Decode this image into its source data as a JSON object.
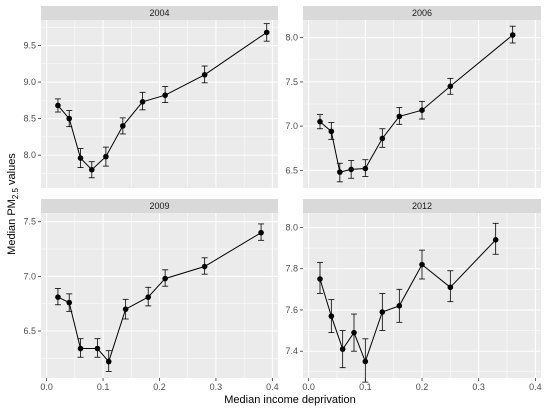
{
  "chart_data": {
    "type": "line",
    "xlabel": "Median income deprivation",
    "ylabel": {
      "pre": "Median PM",
      "sub": "2.5",
      "post": " values"
    },
    "x_ticks": [
      0.0,
      0.1,
      0.2,
      0.3,
      0.4
    ],
    "x_tick_labels": [
      "0.0",
      "0.1",
      "0.2",
      "0.3",
      "0.4"
    ],
    "xlim": [
      -0.01,
      0.41
    ],
    "grid": true,
    "error_bars": true,
    "colors": {
      "panel_bg": "#ebebeb",
      "strip_bg": "#d9d9d9",
      "grid": "#ffffff",
      "line": "#000000"
    },
    "facets": [
      {
        "label": "2004",
        "ylim": [
          7.55,
          9.85
        ],
        "y_ticks": [
          8.0,
          8.5,
          9.0,
          9.5
        ],
        "y_tick_labels": [
          "8.0",
          "8.5",
          "9.0",
          "9.5"
        ],
        "points": [
          {
            "x": 0.02,
            "y": 8.68,
            "lo": 8.59,
            "hi": 8.77
          },
          {
            "x": 0.04,
            "y": 8.5,
            "lo": 8.39,
            "hi": 8.61
          },
          {
            "x": 0.06,
            "y": 7.96,
            "lo": 7.83,
            "hi": 8.09
          },
          {
            "x": 0.08,
            "y": 7.8,
            "lo": 7.69,
            "hi": 7.91
          },
          {
            "x": 0.105,
            "y": 7.98,
            "lo": 7.85,
            "hi": 8.11
          },
          {
            "x": 0.135,
            "y": 8.4,
            "lo": 8.29,
            "hi": 8.51
          },
          {
            "x": 0.17,
            "y": 8.73,
            "lo": 8.62,
            "hi": 8.86
          },
          {
            "x": 0.21,
            "y": 8.82,
            "lo": 8.72,
            "hi": 8.94
          },
          {
            "x": 0.28,
            "y": 9.1,
            "lo": 8.99,
            "hi": 9.22
          },
          {
            "x": 0.39,
            "y": 9.68,
            "lo": 9.56,
            "hi": 9.8
          }
        ]
      },
      {
        "label": "2006",
        "ylim": [
          6.3,
          8.2
        ],
        "y_ticks": [
          6.5,
          7.0,
          7.5,
          8.0
        ],
        "y_tick_labels": [
          "6.5",
          "7.0",
          "7.5",
          "8.0"
        ],
        "points": [
          {
            "x": 0.02,
            "y": 7.05,
            "lo": 6.97,
            "hi": 7.13
          },
          {
            "x": 0.04,
            "y": 6.94,
            "lo": 6.85,
            "hi": 7.04
          },
          {
            "x": 0.055,
            "y": 6.48,
            "lo": 6.37,
            "hi": 6.58
          },
          {
            "x": 0.075,
            "y": 6.51,
            "lo": 6.41,
            "hi": 6.61
          },
          {
            "x": 0.1,
            "y": 6.52,
            "lo": 6.43,
            "hi": 6.62
          },
          {
            "x": 0.13,
            "y": 6.86,
            "lo": 6.76,
            "hi": 6.97
          },
          {
            "x": 0.16,
            "y": 7.11,
            "lo": 7.02,
            "hi": 7.21
          },
          {
            "x": 0.2,
            "y": 7.18,
            "lo": 7.08,
            "hi": 7.28
          },
          {
            "x": 0.25,
            "y": 7.45,
            "lo": 7.36,
            "hi": 7.54
          },
          {
            "x": 0.36,
            "y": 8.03,
            "lo": 7.94,
            "hi": 8.13
          }
        ]
      },
      {
        "label": "2009",
        "ylim": [
          6.07,
          7.58
        ],
        "y_ticks": [
          6.5,
          7.0,
          7.5
        ],
        "y_tick_labels": [
          "6.5",
          "7.0",
          "7.5"
        ],
        "points": [
          {
            "x": 0.02,
            "y": 6.81,
            "lo": 6.74,
            "hi": 6.89
          },
          {
            "x": 0.04,
            "y": 6.76,
            "lo": 6.68,
            "hi": 6.84
          },
          {
            "x": 0.06,
            "y": 6.34,
            "lo": 6.26,
            "hi": 6.43
          },
          {
            "x": 0.09,
            "y": 6.34,
            "lo": 6.26,
            "hi": 6.43
          },
          {
            "x": 0.11,
            "y": 6.22,
            "lo": 6.13,
            "hi": 6.32
          },
          {
            "x": 0.14,
            "y": 6.7,
            "lo": 6.61,
            "hi": 6.79
          },
          {
            "x": 0.18,
            "y": 6.81,
            "lo": 6.73,
            "hi": 6.9
          },
          {
            "x": 0.21,
            "y": 6.98,
            "lo": 6.91,
            "hi": 7.06
          },
          {
            "x": 0.28,
            "y": 7.09,
            "lo": 7.02,
            "hi": 7.17
          },
          {
            "x": 0.38,
            "y": 7.4,
            "lo": 7.33,
            "hi": 7.48
          }
        ]
      },
      {
        "label": "2012",
        "ylim": [
          7.27,
          8.07
        ],
        "y_ticks": [
          7.4,
          7.6,
          7.8,
          8.0
        ],
        "y_tick_labels": [
          "7.4",
          "7.6",
          "7.8",
          "8.0"
        ],
        "points": [
          {
            "x": 0.02,
            "y": 7.75,
            "lo": 7.68,
            "hi": 7.83
          },
          {
            "x": 0.04,
            "y": 7.57,
            "lo": 7.49,
            "hi": 7.65
          },
          {
            "x": 0.06,
            "y": 7.41,
            "lo": 7.32,
            "hi": 7.5
          },
          {
            "x": 0.08,
            "y": 7.49,
            "lo": 7.4,
            "hi": 7.58
          },
          {
            "x": 0.1,
            "y": 7.35,
            "lo": 7.25,
            "hi": 7.46
          },
          {
            "x": 0.13,
            "y": 7.59,
            "lo": 7.5,
            "hi": 7.68
          },
          {
            "x": 0.16,
            "y": 7.62,
            "lo": 7.54,
            "hi": 7.7
          },
          {
            "x": 0.2,
            "y": 7.82,
            "lo": 7.75,
            "hi": 7.89
          },
          {
            "x": 0.25,
            "y": 7.71,
            "lo": 7.64,
            "hi": 7.79
          },
          {
            "x": 0.33,
            "y": 7.94,
            "lo": 7.87,
            "hi": 8.02
          }
        ]
      }
    ]
  }
}
